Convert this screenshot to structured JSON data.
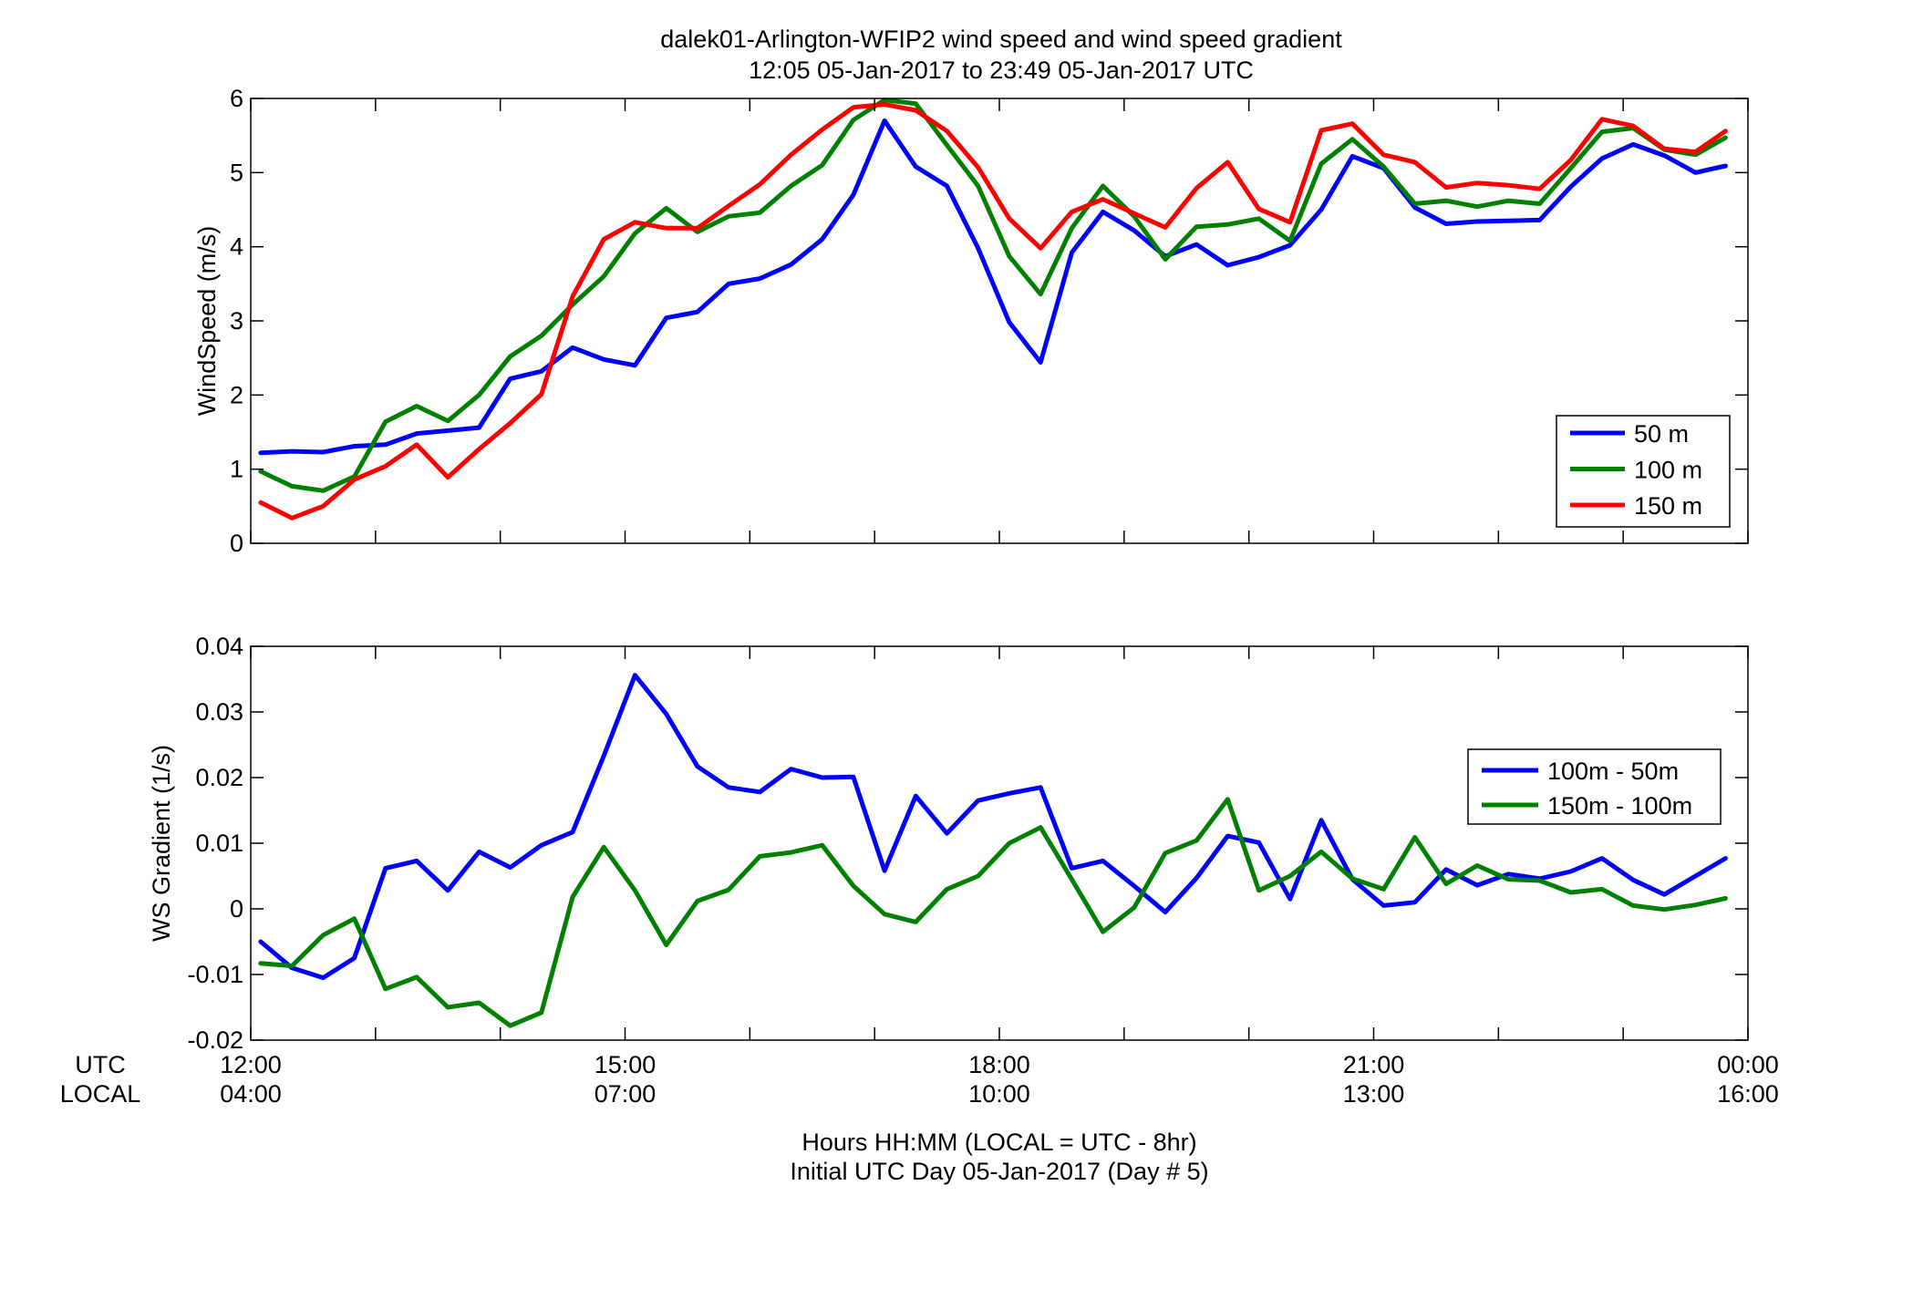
{
  "figure": {
    "title_line1": "dalek01-Arlington-WFIP2  wind speed and wind speed gradient",
    "title_line2": "12:05 05-Jan-2017 to 23:49 05-Jan-2017  UTC",
    "row_label_utc": "UTC",
    "row_label_local": "LOCAL",
    "xlabel_line1": "Hours HH:MM  (LOCAL = UTC - 8hr)",
    "xlabel_line2": "Initial UTC Day 05-Jan-2017 (Day # 5)",
    "utc_ticks": [
      "12:00",
      "15:00",
      "18:00",
      "21:00",
      "00:00"
    ],
    "local_ticks": [
      "04:00",
      "07:00",
      "10:00",
      "13:00",
      "16:00"
    ]
  },
  "chart_data": [
    {
      "type": "line",
      "ylabel": "WindSpeed (m/s)",
      "xlim": [
        12.0,
        24.0
      ],
      "ylim": [
        0,
        6
      ],
      "yticks": [
        "0",
        "1",
        "2",
        "3",
        "4",
        "5",
        "6"
      ],
      "grid": false,
      "legend_position": "bottom-right",
      "x": [
        12.08,
        12.33,
        12.58,
        12.83,
        13.08,
        13.33,
        13.58,
        13.83,
        14.08,
        14.33,
        14.58,
        14.83,
        15.08,
        15.33,
        15.58,
        15.83,
        16.08,
        16.33,
        16.58,
        16.83,
        17.08,
        17.33,
        17.58,
        17.83,
        18.08,
        18.33,
        18.58,
        18.83,
        19.08,
        19.33,
        19.58,
        19.83,
        20.08,
        20.33,
        20.58,
        20.83,
        21.08,
        21.33,
        21.58,
        21.83,
        22.08,
        22.33,
        22.58,
        22.83,
        23.08,
        23.33,
        23.58,
        23.82
      ],
      "series": [
        {
          "name": "50 m",
          "color": "#0000ff",
          "values": [
            1.22,
            1.24,
            1.23,
            1.31,
            1.33,
            1.48,
            1.52,
            1.56,
            2.22,
            2.32,
            2.64,
            2.48,
            2.4,
            3.04,
            3.12,
            3.5,
            3.57,
            3.76,
            4.1,
            4.7,
            5.7,
            5.08,
            4.82,
            3.98,
            2.98,
            2.44,
            3.92,
            4.47,
            4.22,
            3.87,
            4.03,
            3.75,
            3.86,
            4.02,
            4.5,
            5.22,
            5.06,
            4.53,
            4.31,
            4.34,
            4.35,
            4.36,
            4.81,
            5.19,
            5.38,
            5.23,
            5.0,
            5.09
          ]
        },
        {
          "name": "100 m",
          "color": "#008000",
          "values": [
            0.97,
            0.77,
            0.71,
            0.9,
            1.64,
            1.85,
            1.65,
            2.0,
            2.52,
            2.8,
            3.22,
            3.6,
            4.18,
            4.52,
            4.2,
            4.41,
            4.46,
            4.82,
            5.1,
            5.71,
            5.98,
            5.93,
            5.37,
            4.82,
            3.87,
            3.36,
            4.25,
            4.82,
            4.41,
            3.83,
            4.27,
            4.3,
            4.38,
            4.08,
            5.12,
            5.45,
            5.08,
            4.58,
            4.62,
            4.54,
            4.62,
            4.58,
            5.06,
            5.55,
            5.6,
            5.31,
            5.24,
            5.47
          ]
        },
        {
          "name": "150 m",
          "color": "#ff0000",
          "values": [
            0.55,
            0.34,
            0.5,
            0.86,
            1.04,
            1.33,
            0.89,
            1.27,
            1.62,
            2.01,
            3.33,
            4.1,
            4.33,
            4.25,
            4.25,
            4.55,
            4.84,
            5.24,
            5.58,
            5.88,
            5.92,
            5.84,
            5.56,
            5.07,
            4.38,
            3.98,
            4.47,
            4.64,
            4.45,
            4.26,
            4.79,
            5.14,
            4.51,
            4.33,
            5.57,
            5.66,
            5.24,
            5.14,
            4.8,
            4.86,
            4.83,
            4.78,
            5.17,
            5.72,
            5.63,
            5.32,
            5.28,
            5.56
          ]
        }
      ]
    },
    {
      "type": "line",
      "ylabel": "WS Gradient (1/s)",
      "xlim": [
        12.0,
        24.0
      ],
      "ylim": [
        -0.02,
        0.04
      ],
      "yticks": [
        "-0.02",
        "-0.01",
        "0",
        "0.01",
        "0.02",
        "0.03",
        "0.04"
      ],
      "grid": false,
      "legend_position": "right",
      "x": [
        12.08,
        12.33,
        12.58,
        12.83,
        13.08,
        13.33,
        13.58,
        13.83,
        14.08,
        14.33,
        14.58,
        14.83,
        15.08,
        15.33,
        15.58,
        15.83,
        16.08,
        16.33,
        16.58,
        16.83,
        17.08,
        17.33,
        17.58,
        17.83,
        18.08,
        18.33,
        18.58,
        18.83,
        19.08,
        19.33,
        19.58,
        19.83,
        20.08,
        20.33,
        20.58,
        20.83,
        21.08,
        21.33,
        21.58,
        21.83,
        22.08,
        22.33,
        22.58,
        22.83,
        23.08,
        23.33,
        23.58,
        23.82
      ],
      "series": [
        {
          "name": "100m - 50m",
          "color": "#0000ff",
          "values": [
            -0.005,
            -0.009,
            -0.0105,
            -0.0075,
            0.0062,
            0.0073,
            0.0028,
            0.0087,
            0.0063,
            0.0097,
            0.0117,
            0.0233,
            0.0356,
            0.0297,
            0.0217,
            0.0185,
            0.0178,
            0.0213,
            0.02,
            0.0201,
            0.0058,
            0.0172,
            0.0115,
            0.0165,
            0.0176,
            0.0185,
            0.0062,
            0.0073,
            0.0035,
            -0.0005,
            0.0047,
            0.0111,
            0.0101,
            0.0015,
            0.0135,
            0.0045,
            0.0005,
            0.001,
            0.006,
            0.0036,
            0.0053,
            0.0046,
            0.0057,
            0.0077,
            0.0044,
            0.0022,
            0.005,
            0.0077
          ]
        },
        {
          "name": "150m - 100m",
          "color": "#008000",
          "values": [
            -0.0083,
            -0.0087,
            -0.004,
            -0.0015,
            -0.0122,
            -0.0104,
            -0.015,
            -0.0143,
            -0.0178,
            -0.0158,
            0.0018,
            0.0094,
            0.0028,
            -0.0055,
            0.0012,
            0.0029,
            0.008,
            0.0086,
            0.0097,
            0.0035,
            -0.0008,
            -0.002,
            0.003,
            0.005,
            0.01,
            0.0124,
            0.0045,
            -0.0035,
            0.0002,
            0.0085,
            0.0104,
            0.0167,
            0.0028,
            0.005,
            0.0087,
            0.0046,
            0.003,
            0.0109,
            0.0038,
            0.0066,
            0.0045,
            0.0043,
            0.0025,
            0.003,
            0.0005,
            -0.0001,
            0.0006,
            0.0016
          ]
        }
      ]
    }
  ]
}
